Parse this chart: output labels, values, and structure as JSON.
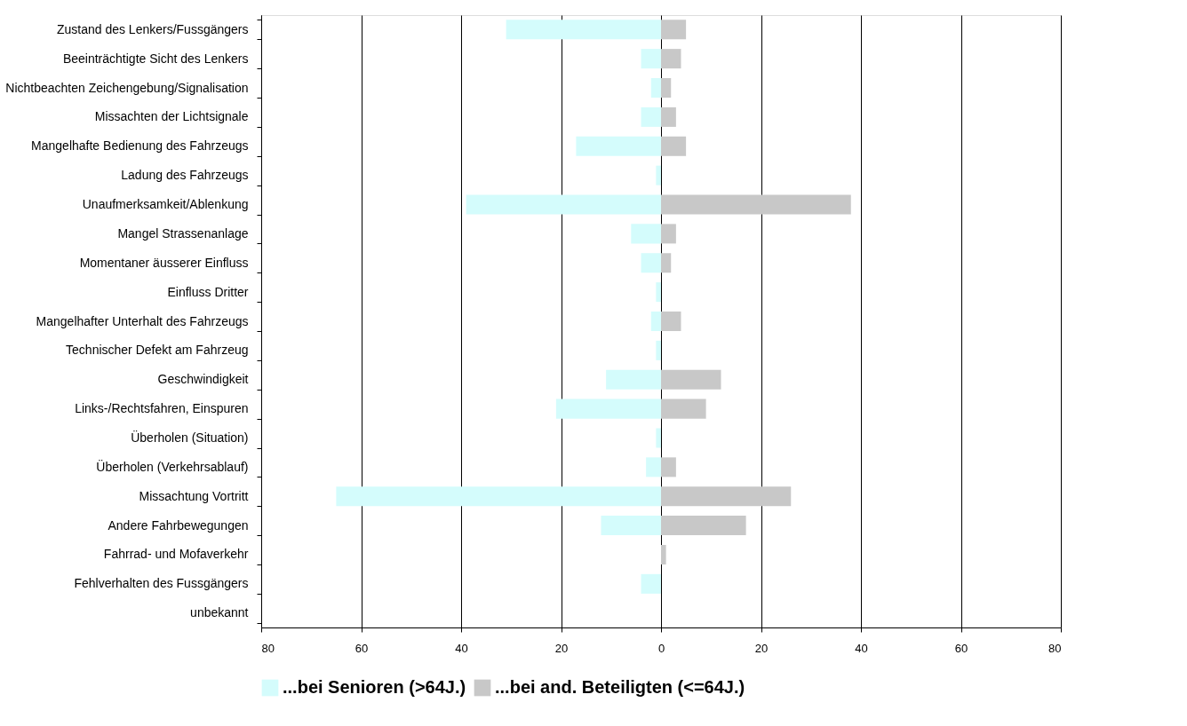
{
  "chart_data": {
    "type": "bar",
    "orientation": "horizontal",
    "categories": [
      "Zustand des Lenkers/Fussgängers",
      "Beeinträchtigte Sicht des Lenkers",
      "Nichtbeachten Zeichengebung/Signalisation",
      "Missachten der Lichtsignale",
      "Mangelhafte Bedienung des Fahrzeugs",
      "Ladung des Fahrzeugs",
      "Unaufmerksamkeit/Ablenkung",
      "Mangel Strassenanlage",
      "Momentaner äusserer Einfluss",
      "Einfluss Dritter",
      "Mangelhafter Unterhalt des Fahrzeugs",
      "Technischer Defekt am Fahrzeug",
      "Geschwindigkeit",
      "Links-/Rechtsfahren, Einspuren",
      "Überholen (Situation)",
      "Überholen (Verkehrsablauf)",
      "Missachtung Vortritt",
      "Andere Fahrbewegungen",
      "Fahrrad- und Mofaverkehr",
      "Fehlverhalten des Fussgängers",
      "unbekannt"
    ],
    "series": [
      {
        "name": "...bei Senioren (>64J.)",
        "color": "#d4fcfc",
        "values": [
          -31,
          -4,
          -2,
          -4,
          -17,
          -1,
          -39,
          -6,
          -4,
          -1,
          -2,
          -1,
          -11,
          -21,
          -1,
          -3,
          -65,
          -12,
          0,
          -4,
          0
        ]
      },
      {
        "name": "...bei and. Beteiligten (<=64J.)",
        "color": "#c8c8c8",
        "values": [
          5,
          4,
          2,
          3,
          5,
          0,
          38,
          3,
          2,
          0,
          4,
          0,
          12,
          9,
          0,
          3,
          26,
          17,
          1,
          0,
          0
        ]
      }
    ],
    "xlim": [
      -80,
      80
    ],
    "xticks": [
      {
        "value": -80,
        "label": "80"
      },
      {
        "value": -60,
        "label": "60"
      },
      {
        "value": -40,
        "label": "40"
      },
      {
        "value": -20,
        "label": "20"
      },
      0,
      20,
      40,
      60,
      80
    ],
    "stacked": true,
    "grid": "x",
    "legend": "bottom"
  }
}
